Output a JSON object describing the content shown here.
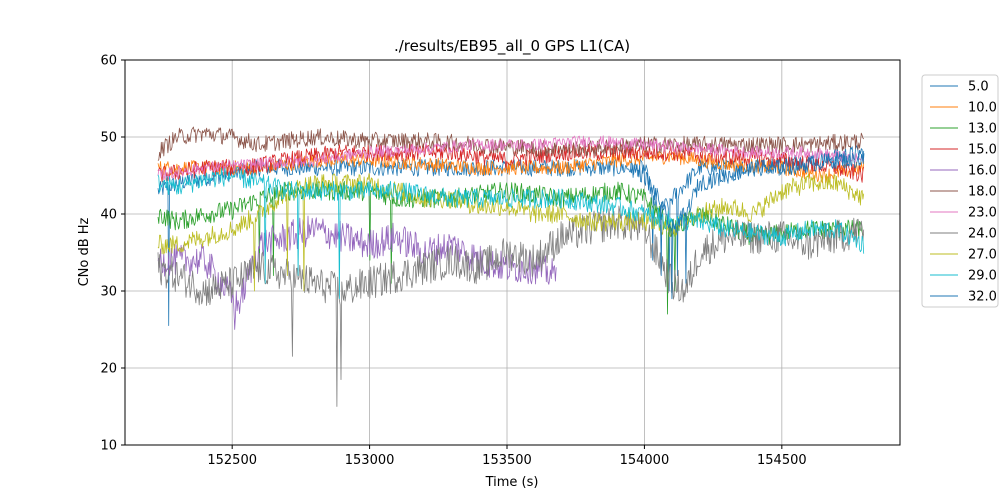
{
  "chart_data": {
    "type": "line",
    "title": "./results/EB95_all_0 GPS L1(CA)",
    "xlabel": "Time (s)",
    "ylabel": "CNo dB Hz",
    "xlim": [
      152110,
      154930
    ],
    "ylim": [
      10,
      60
    ],
    "xticks": [
      152500,
      153000,
      153500,
      154000,
      154500
    ],
    "yticks": [
      10,
      20,
      30,
      40,
      50,
      60
    ],
    "grid": true,
    "legend_position": "outside-right",
    "series": [
      {
        "name": "5.0",
        "color": "#1f77b4",
        "noise": 0.7,
        "spikes": [
          [
            152270,
            25.5
          ],
          [
            154030,
            34
          ],
          [
            154090,
            30
          ],
          [
            154120,
            32
          ]
        ],
        "points": [
          [
            152230,
            43
          ],
          [
            152300,
            44
          ],
          [
            152450,
            45
          ],
          [
            152600,
            46
          ],
          [
            152800,
            46
          ],
          [
            153000,
            46
          ],
          [
            153200,
            46
          ],
          [
            153400,
            46
          ],
          [
            153600,
            46
          ],
          [
            153800,
            46
          ],
          [
            154000,
            46
          ],
          [
            154050,
            40
          ],
          [
            154200,
            46
          ],
          [
            154400,
            46
          ],
          [
            154600,
            47
          ],
          [
            154800,
            48
          ]
        ]
      },
      {
        "name": "10.0",
        "color": "#ff7f0e",
        "noise": 0.6,
        "spikes": [],
        "points": [
          [
            152230,
            46
          ],
          [
            152400,
            46
          ],
          [
            152600,
            46
          ],
          [
            152800,
            47
          ],
          [
            153000,
            47
          ],
          [
            153200,
            46.5
          ],
          [
            153400,
            46
          ],
          [
            153500,
            46
          ],
          [
            153700,
            46
          ],
          [
            153900,
            47
          ],
          [
            154100,
            47.5
          ],
          [
            154300,
            46.5
          ],
          [
            154500,
            46
          ],
          [
            154650,
            45
          ],
          [
            154800,
            46
          ]
        ]
      },
      {
        "name": "13.0",
        "color": "#2ca02c",
        "noise": 0.8,
        "spikes": [
          [
            152600,
            33
          ],
          [
            152650,
            32
          ],
          [
            153000,
            34
          ],
          [
            153080,
            31
          ],
          [
            154085,
            27
          ],
          [
            154110,
            30
          ]
        ],
        "points": [
          [
            152230,
            40
          ],
          [
            152300,
            39
          ],
          [
            152400,
            40
          ],
          [
            152500,
            40.5
          ],
          [
            152600,
            42
          ],
          [
            152700,
            43
          ],
          [
            152850,
            43
          ],
          [
            153000,
            43
          ],
          [
            153100,
            42
          ],
          [
            153300,
            42
          ],
          [
            153500,
            43
          ],
          [
            153700,
            42
          ],
          [
            153900,
            43
          ],
          [
            154000,
            42
          ],
          [
            154100,
            38
          ],
          [
            154200,
            40
          ],
          [
            154400,
            37
          ],
          [
            154600,
            38
          ],
          [
            154800,
            38
          ]
        ]
      },
      {
        "name": "15.0",
        "color": "#d62728",
        "noise": 0.7,
        "spikes": [],
        "points": [
          [
            152230,
            45
          ],
          [
            152400,
            46
          ],
          [
            152550,
            46
          ],
          [
            152700,
            47
          ],
          [
            152900,
            48
          ],
          [
            153100,
            48
          ],
          [
            153300,
            48
          ],
          [
            153500,
            47
          ],
          [
            153700,
            48
          ],
          [
            153900,
            48
          ],
          [
            154100,
            48
          ],
          [
            154300,
            47.5
          ],
          [
            154500,
            47
          ],
          [
            154700,
            46
          ],
          [
            154800,
            45
          ]
        ]
      },
      {
        "name": "16.0",
        "color": "#9467bd",
        "noise": 1.3,
        "spikes": [
          [
            152510,
            25
          ]
        ],
        "points": [
          [
            152230,
            34
          ],
          [
            152300,
            34
          ],
          [
            152400,
            34
          ],
          [
            152480,
            30
          ],
          [
            152520,
            28
          ],
          [
            152560,
            32
          ],
          [
            152600,
            36
          ],
          [
            152700,
            37
          ],
          [
            152800,
            38
          ],
          [
            152900,
            37
          ],
          [
            153000,
            36
          ],
          [
            153100,
            37
          ],
          [
            153200,
            35
          ],
          [
            153300,
            36
          ],
          [
            153400,
            34
          ],
          [
            153500,
            33
          ],
          [
            153600,
            33
          ],
          [
            153680,
            32
          ]
        ]
      },
      {
        "name": "18.0",
        "color": "#8c564b",
        "noise": 0.7,
        "spikes": [],
        "points": [
          [
            152230,
            48
          ],
          [
            152300,
            50
          ],
          [
            152400,
            50.5
          ],
          [
            152500,
            50
          ],
          [
            152600,
            49
          ],
          [
            152700,
            49.5
          ],
          [
            152800,
            50
          ],
          [
            153000,
            49.5
          ],
          [
            153200,
            49.5
          ],
          [
            153400,
            49
          ],
          [
            153600,
            48.5
          ],
          [
            153800,
            48.5
          ],
          [
            154000,
            49
          ],
          [
            154200,
            49
          ],
          [
            154400,
            49
          ],
          [
            154600,
            49
          ],
          [
            154800,
            49.5
          ]
        ]
      },
      {
        "name": "23.0",
        "color": "#e377c2",
        "noise": 0.5,
        "spikes": [],
        "points": [
          [
            152230,
            45
          ],
          [
            152400,
            46
          ],
          [
            152600,
            46.5
          ],
          [
            152800,
            47
          ],
          [
            153000,
            48
          ],
          [
            153200,
            48.5
          ],
          [
            153400,
            49
          ],
          [
            153600,
            49
          ],
          [
            153800,
            49.5
          ],
          [
            154000,
            49
          ],
          [
            154200,
            48.5
          ],
          [
            154400,
            48
          ],
          [
            154600,
            48
          ],
          [
            154800,
            47
          ]
        ]
      },
      {
        "name": "24.0",
        "color": "#7f7f7f",
        "noise": 1.4,
        "spikes": [
          [
            152720,
            21.5
          ],
          [
            152880,
            15
          ],
          [
            152895,
            18.5
          ]
        ],
        "points": [
          [
            152230,
            33
          ],
          [
            152300,
            32
          ],
          [
            152400,
            30
          ],
          [
            152500,
            31
          ],
          [
            152600,
            33
          ],
          [
            152700,
            32
          ],
          [
            152800,
            31
          ],
          [
            152900,
            30
          ],
          [
            153000,
            31
          ],
          [
            153100,
            32
          ],
          [
            153200,
            33
          ],
          [
            153300,
            34
          ],
          [
            153400,
            33
          ],
          [
            153500,
            35
          ],
          [
            153600,
            34
          ],
          [
            153700,
            37
          ],
          [
            153800,
            38
          ],
          [
            153900,
            39
          ],
          [
            154000,
            38
          ],
          [
            154100,
            31
          ],
          [
            154150,
            30
          ],
          [
            154200,
            35
          ],
          [
            154300,
            37
          ],
          [
            154400,
            37
          ],
          [
            154500,
            37
          ],
          [
            154600,
            36
          ],
          [
            154700,
            37
          ],
          [
            154800,
            38
          ]
        ]
      },
      {
        "name": "27.0",
        "color": "#bcbd22",
        "noise": 0.8,
        "spikes": [
          [
            152580,
            30
          ],
          [
            152700,
            32
          ],
          [
            152760,
            30
          ]
        ],
        "points": [
          [
            152230,
            36
          ],
          [
            152300,
            36
          ],
          [
            152400,
            37
          ],
          [
            152500,
            38
          ],
          [
            152600,
            40
          ],
          [
            152700,
            43
          ],
          [
            152800,
            44
          ],
          [
            152900,
            44
          ],
          [
            153000,
            44
          ],
          [
            153100,
            43
          ],
          [
            153200,
            42
          ],
          [
            153300,
            42
          ],
          [
            153400,
            41
          ],
          [
            153500,
            41
          ],
          [
            153600,
            40
          ],
          [
            153700,
            40
          ],
          [
            153800,
            39
          ],
          [
            153900,
            39
          ],
          [
            154000,
            39
          ],
          [
            154100,
            38
          ],
          [
            154200,
            40
          ],
          [
            154300,
            41
          ],
          [
            154400,
            40
          ],
          [
            154500,
            43
          ],
          [
            154600,
            44
          ],
          [
            154700,
            44
          ],
          [
            154800,
            42
          ]
        ]
      },
      {
        "name": "29.0",
        "color": "#17becf",
        "noise": 0.8,
        "spikes": [
          [
            152620,
            31
          ],
          [
            152740,
            32
          ],
          [
            152890,
            29
          ]
        ],
        "points": [
          [
            152230,
            44
          ],
          [
            152300,
            43.5
          ],
          [
            152400,
            44.5
          ],
          [
            152500,
            45
          ],
          [
            152600,
            44
          ],
          [
            152700,
            43
          ],
          [
            152800,
            43
          ],
          [
            152900,
            43
          ],
          [
            153000,
            43
          ],
          [
            153100,
            43
          ],
          [
            153200,
            42.5
          ],
          [
            153300,
            42
          ],
          [
            153400,
            42
          ],
          [
            153500,
            42
          ],
          [
            153600,
            42
          ],
          [
            153700,
            42
          ],
          [
            153800,
            41.5
          ],
          [
            153900,
            41
          ],
          [
            154000,
            40
          ],
          [
            154100,
            39
          ],
          [
            154200,
            39
          ],
          [
            154300,
            38
          ],
          [
            154400,
            37.5
          ],
          [
            154500,
            37
          ],
          [
            154600,
            38
          ],
          [
            154700,
            38
          ],
          [
            154800,
            36
          ]
        ]
      },
      {
        "name": "32.0",
        "color": "#1f77b4",
        "noise": 0.7,
        "spikes": [
          [
            154060,
            32
          ],
          [
            154100,
            29
          ],
          [
            154150,
            31
          ]
        ],
        "points": [
          [
            153950,
            46
          ],
          [
            154000,
            45
          ],
          [
            154050,
            42
          ],
          [
            154100,
            38
          ],
          [
            154150,
            40
          ],
          [
            154200,
            44
          ],
          [
            154300,
            45
          ],
          [
            154400,
            46
          ],
          [
            154500,
            46
          ],
          [
            154600,
            46.5
          ],
          [
            154700,
            47
          ],
          [
            154800,
            47
          ]
        ]
      }
    ]
  }
}
